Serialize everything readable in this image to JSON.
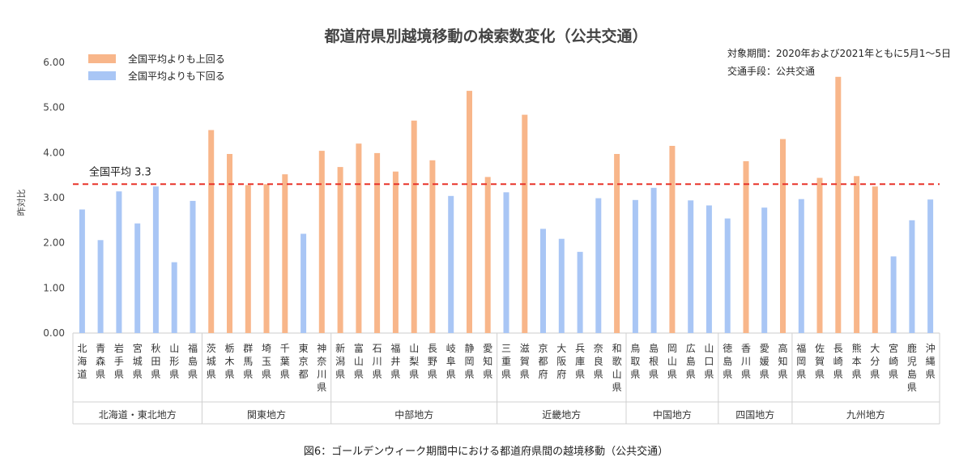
{
  "caption": "図6：ゴールデンウィーク期間中における都道府県間の越境移動（公共交通）",
  "chart_data": {
    "type": "bar",
    "title": "都道府県別越境移動の検索数変化（公共交通）",
    "ylabel": "昨対比",
    "ylim": [
      0,
      6
    ],
    "yticks": [
      "0.00",
      "1.00",
      "2.00",
      "3.00",
      "4.00",
      "5.00",
      "6.00"
    ],
    "notes": [
      "対象期間：2020年および2021年ともに5月1～5日",
      "交通手段：公共交通"
    ],
    "legend": [
      {
        "label": "全国平均よりも上回る",
        "color": "#f8b68a"
      },
      {
        "label": "全国平均よりも下回る",
        "color": "#a9c6f5"
      }
    ],
    "legend_position": "top-left",
    "reference_line": {
      "value": 3.3,
      "label": "全国平均 3.3",
      "color": "#e8332a"
    },
    "categories": [
      "北海道",
      "青森県",
      "岩手県",
      "宮城県",
      "秋田県",
      "山形県",
      "福島県",
      "茨城県",
      "栃木県",
      "群馬県",
      "埼玉県",
      "千葉県",
      "東京都",
      "神奈川県",
      "新潟県",
      "富山県",
      "石川県",
      "福井県",
      "山梨県",
      "長野県",
      "岐阜県",
      "静岡県",
      "愛知県",
      "三重県",
      "滋賀県",
      "京都府",
      "大阪府",
      "兵庫県",
      "奈良県",
      "和歌山県",
      "鳥取県",
      "島根県",
      "岡山県",
      "広島県",
      "山口県",
      "徳島県",
      "香川県",
      "愛媛県",
      "高知県",
      "福岡県",
      "佐賀県",
      "長崎県",
      "熊本県",
      "大分県",
      "宮崎県",
      "鹿児島県",
      "沖縄県"
    ],
    "values": [
      2.74,
      2.06,
      3.14,
      2.43,
      3.25,
      1.57,
      2.93,
      4.5,
      3.97,
      3.28,
      3.3,
      3.52,
      2.2,
      4.04,
      3.68,
      4.2,
      3.99,
      3.58,
      4.71,
      3.83,
      3.04,
      5.37,
      3.46,
      3.12,
      4.84,
      2.31,
      2.09,
      1.8,
      2.99,
      3.97,
      2.95,
      3.22,
      4.15,
      2.94,
      2.83,
      2.54,
      3.81,
      2.78,
      4.3,
      2.97,
      3.44,
      5.68,
      3.48,
      3.25,
      1.7,
      2.5,
      2.96
    ],
    "above_average": [
      false,
      false,
      false,
      false,
      false,
      false,
      false,
      true,
      true,
      true,
      true,
      true,
      false,
      true,
      true,
      true,
      true,
      true,
      true,
      true,
      false,
      true,
      true,
      false,
      true,
      false,
      false,
      false,
      false,
      true,
      false,
      false,
      true,
      false,
      false,
      false,
      true,
      false,
      true,
      false,
      true,
      true,
      true,
      true,
      false,
      false,
      false
    ],
    "regions": [
      {
        "label": "北海道・東北地方",
        "count": 7
      },
      {
        "label": "関東地方",
        "count": 7
      },
      {
        "label": "中部地方",
        "count": 9
      },
      {
        "label": "近畿地方",
        "count": 7
      },
      {
        "label": "中国地方",
        "count": 5
      },
      {
        "label": "四国地方",
        "count": 4
      },
      {
        "label": "九州地方",
        "count": 8
      }
    ],
    "grid": false
  }
}
